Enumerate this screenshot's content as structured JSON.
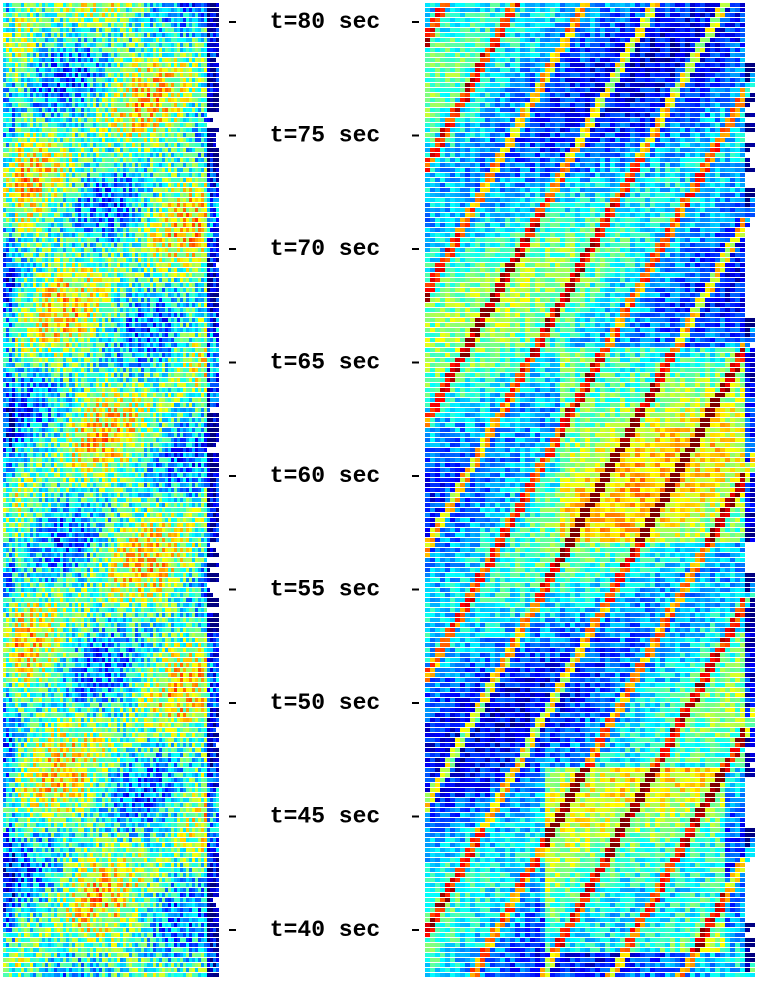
{
  "labels": [
    "t=80 sec",
    "t=75 sec",
    "t=70 sec",
    "t=65 sec",
    "t=60 sec",
    "t=55 sec",
    "t=50 sec",
    "t=45 sec",
    "t=40 sec"
  ]
}
